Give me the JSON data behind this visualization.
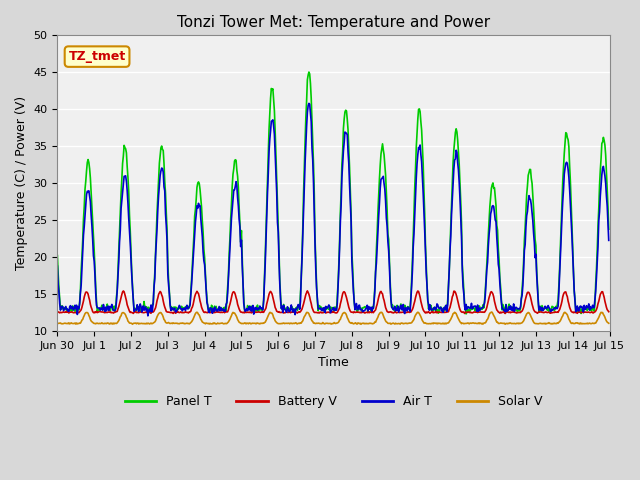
{
  "title": "Tonzi Tower Met: Temperature and Power",
  "xlabel": "Time",
  "ylabel": "Temperature (C) / Power (V)",
  "ylim": [
    10,
    50
  ],
  "yticks": [
    10,
    15,
    20,
    25,
    30,
    35,
    40,
    45,
    50
  ],
  "fig_bg_color": "#d8d8d8",
  "plot_bg_color": "#f0f0f0",
  "grid_color": "#ffffff",
  "colors": {
    "panel_t": "#00cc00",
    "battery_v": "#cc0000",
    "air_t": "#0000cc",
    "solar_v": "#cc8800"
  },
  "legend_labels": [
    "Panel T",
    "Battery V",
    "Air T",
    "Solar V"
  ],
  "annotation_text": "TZ_tmet",
  "annotation_fg": "#cc0000",
  "annotation_bg": "#ffffcc",
  "annotation_border": "#cc8800",
  "panel_amps": [
    20,
    22,
    22,
    17,
    20,
    30,
    32,
    27,
    22,
    27,
    24,
    17,
    19,
    24,
    23
  ],
  "air_amps": [
    16,
    18,
    19,
    14,
    17,
    26,
    28,
    24,
    18,
    22,
    21,
    14,
    15,
    20,
    19
  ],
  "n_days": 15,
  "pts_per_day": 48
}
